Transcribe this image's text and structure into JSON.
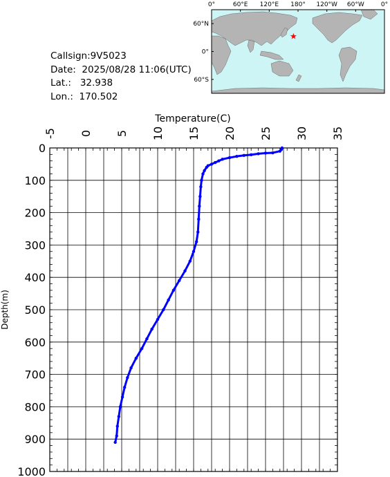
{
  "station": {
    "callsign_label": "Callsign:",
    "callsign": "9V5023",
    "date_label": "Date:",
    "date": "2025/08/28 11:06(UTC)",
    "lat_label": "Lat.:",
    "lat": "32.938",
    "lon_label": "Lon.:",
    "lon": "170.502"
  },
  "map": {
    "top_labels": [
      "0°",
      "60°E",
      "120°E",
      "180°",
      "120°W",
      "60°W",
      "0°"
    ],
    "left_labels": [
      "60°N",
      "0°",
      "60°S"
    ],
    "ocean_color": "#cdf5f5",
    "land_color": "#b4b4b4",
    "marker": {
      "lat": 32.938,
      "lon": 170.502,
      "symbol": "★",
      "color": "#ff0000"
    }
  },
  "chart_data": {
    "type": "line",
    "xlabel": "Temperature(C)",
    "ylabel": "Depth(m)",
    "xlim": [
      -5,
      35
    ],
    "ylim": [
      1000,
      0
    ],
    "x_ticks": [
      "-5",
      "0",
      "5",
      "10",
      "15",
      "20",
      "25",
      "30",
      "35"
    ],
    "y_ticks": [
      "0",
      "100",
      "200",
      "300",
      "400",
      "500",
      "600",
      "700",
      "800",
      "900",
      "1000"
    ],
    "grid": true,
    "line_color": "#0000ff",
    "series": [
      {
        "points": [
          [
            27.3,
            0
          ],
          [
            27.2,
            5
          ],
          [
            27.0,
            10
          ],
          [
            26.0,
            15
          ],
          [
            25.0,
            16
          ],
          [
            24.0,
            18
          ],
          [
            23.0,
            21
          ],
          [
            22.0,
            23
          ],
          [
            21.0,
            26
          ],
          [
            20.0,
            30
          ],
          [
            19.0,
            35
          ],
          [
            18.5,
            40
          ],
          [
            18.0,
            45
          ],
          [
            17.5,
            50
          ],
          [
            17.0,
            55
          ],
          [
            16.8,
            60
          ],
          [
            16.5,
            70
          ],
          [
            16.3,
            80
          ],
          [
            16.1,
            100
          ],
          [
            16.0,
            120
          ],
          [
            15.9,
            150
          ],
          [
            15.8,
            180
          ],
          [
            15.7,
            220
          ],
          [
            15.6,
            260
          ],
          [
            15.4,
            290
          ],
          [
            15.0,
            320
          ],
          [
            14.5,
            350
          ],
          [
            13.8,
            380
          ],
          [
            13.0,
            410
          ],
          [
            12.2,
            440
          ],
          [
            11.5,
            470
          ],
          [
            10.8,
            500
          ],
          [
            10.0,
            530
          ],
          [
            9.2,
            560
          ],
          [
            8.5,
            590
          ],
          [
            7.8,
            620
          ],
          [
            7.0,
            650
          ],
          [
            6.3,
            680
          ],
          [
            5.8,
            710
          ],
          [
            5.4,
            740
          ],
          [
            5.1,
            770
          ],
          [
            4.8,
            800
          ],
          [
            4.6,
            830
          ],
          [
            4.4,
            860
          ],
          [
            4.3,
            890
          ],
          [
            4.1,
            910
          ]
        ]
      }
    ]
  }
}
